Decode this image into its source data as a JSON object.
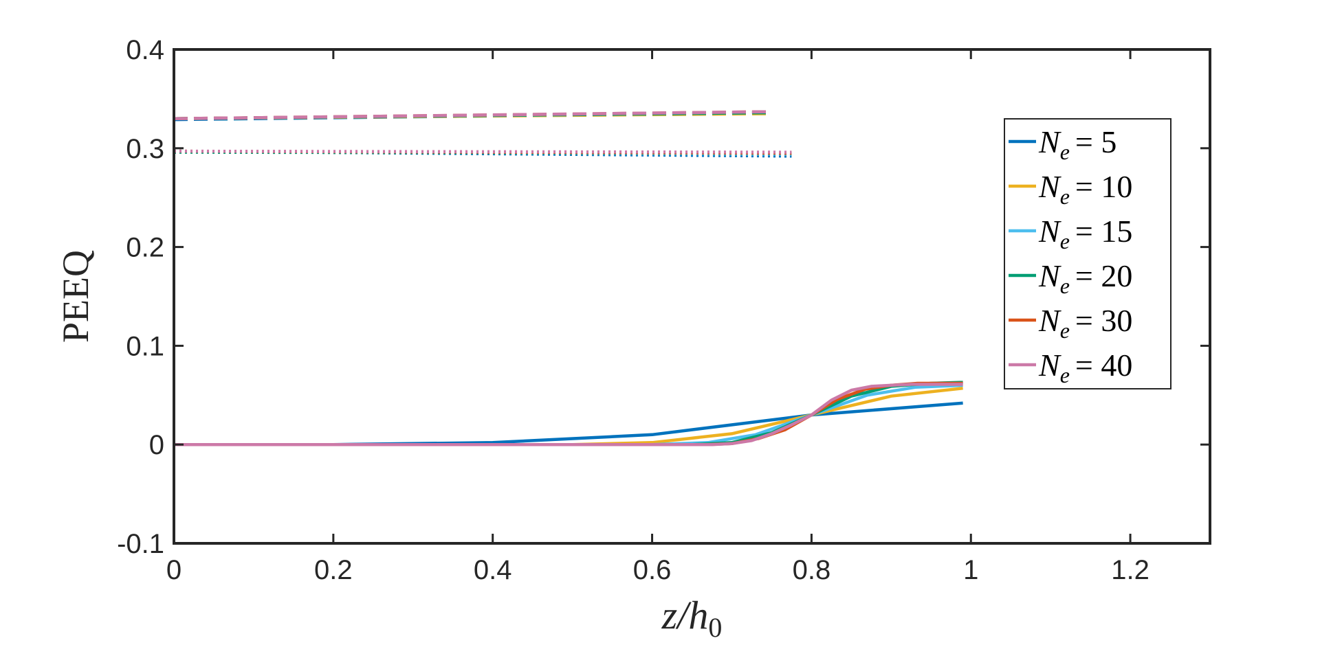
{
  "chart_data": {
    "type": "line",
    "xlabel": "z/h",
    "xlabel_sub": "0",
    "ylabel": "PEEQ",
    "xlim": [
      0,
      1.3
    ],
    "ylim": [
      -0.1,
      0.4
    ],
    "x_ticks": [
      "0",
      "0.2",
      "0.4",
      "0.6",
      "0.8",
      "1",
      "1.2"
    ],
    "y_ticks": [
      "-0.1",
      "0",
      "0.1",
      "0.2",
      "0.3",
      "0.4"
    ],
    "grid": false,
    "legend_position": "right",
    "series": [
      {
        "name": "N_e = 5",
        "legend_symbol": "N",
        "legend_sub": "e",
        "legend_value": "= 5",
        "color": "#0072bd",
        "solid": {
          "x": [
            0,
            0.2,
            0.4,
            0.6,
            0.8,
            0.99
          ],
          "y": [
            0,
            0,
            0.002,
            0.01,
            0.03,
            0.042
          ]
        },
        "dashed": {
          "x": [
            0,
            0.75
          ],
          "y": [
            0.329,
            0.336
          ]
        },
        "dotted": {
          "x": [
            0,
            0.775
          ],
          "y": [
            0.297,
            0.292
          ]
        }
      },
      {
        "name": "N_e = 10",
        "legend_symbol": "N",
        "legend_sub": "e",
        "legend_value": "= 10",
        "color": "#edb120",
        "solid": {
          "x": [
            0,
            0.5,
            0.6,
            0.7,
            0.8,
            0.9,
            0.99
          ],
          "y": [
            0,
            0,
            0.002,
            0.011,
            0.03,
            0.049,
            0.057
          ]
        },
        "dashed": {
          "x": [
            0,
            0.75
          ],
          "y": [
            0.33,
            0.335
          ]
        },
        "dotted": {
          "x": [
            0,
            0.775
          ],
          "y": [
            0.297,
            0.294
          ]
        }
      },
      {
        "name": "N_e = 15",
        "legend_symbol": "N",
        "legend_sub": "e",
        "legend_value": "= 15",
        "color": "#4dbeee",
        "solid": {
          "x": [
            0,
            0.6,
            0.67,
            0.73,
            0.8,
            0.87,
            0.93,
            0.99
          ],
          "y": [
            0,
            0,
            0.002,
            0.01,
            0.03,
            0.05,
            0.058,
            0.06
          ]
        },
        "dashed": {
          "x": [
            0,
            0.75
          ],
          "y": [
            0.33,
            0.336
          ]
        },
        "dotted": {
          "x": [
            0,
            0.775
          ],
          "y": [
            0.297,
            0.294
          ]
        }
      },
      {
        "name": "N_e = 20",
        "legend_symbol": "N",
        "legend_sub": "e",
        "legend_value": "= 20",
        "color": "#009e73",
        "solid": {
          "x": [
            0,
            0.65,
            0.7,
            0.75,
            0.8,
            0.85,
            0.9,
            0.95,
            0.99
          ],
          "y": [
            0,
            0,
            0.002,
            0.012,
            0.03,
            0.049,
            0.059,
            0.062,
            0.063
          ]
        },
        "dashed": {
          "x": [
            0,
            0.75
          ],
          "y": [
            0.33,
            0.336
          ]
        },
        "dotted": {
          "x": [
            0,
            0.775
          ],
          "y": [
            0.296,
            0.295
          ]
        }
      },
      {
        "name": "N_e = 30",
        "legend_symbol": "N",
        "legend_sub": "e",
        "legend_value": "= 30",
        "color": "#d95319",
        "solid": {
          "x": [
            0,
            0.67,
            0.7,
            0.733,
            0.767,
            0.8,
            0.833,
            0.867,
            0.9,
            0.933,
            0.967,
            0.99
          ],
          "y": [
            0,
            0,
            0.001,
            0.006,
            0.015,
            0.03,
            0.046,
            0.056,
            0.06,
            0.062,
            0.062,
            0.062
          ]
        },
        "dashed": {
          "x": [
            0,
            0.75
          ],
          "y": [
            0.33,
            0.337
          ]
        },
        "dotted": {
          "x": [
            0,
            0.775
          ],
          "y": [
            0.297,
            0.295
          ]
        }
      },
      {
        "name": "N_e = 40",
        "legend_symbol": "N",
        "legend_sub": "e",
        "legend_value": "= 40",
        "color": "#cc79a7",
        "solid": {
          "x": [
            0,
            0.675,
            0.7,
            0.725,
            0.75,
            0.775,
            0.8,
            0.825,
            0.85,
            0.875,
            0.9,
            0.925,
            0.95,
            0.99
          ],
          "y": [
            0,
            0,
            0.001,
            0.004,
            0.011,
            0.02,
            0.03,
            0.045,
            0.055,
            0.059,
            0.06,
            0.061,
            0.061,
            0.061
          ]
        },
        "dashed": {
          "x": [
            0,
            0.75
          ],
          "y": [
            0.33,
            0.337
          ]
        },
        "dotted": {
          "x": [
            0,
            0.775
          ],
          "y": [
            0.297,
            0.296
          ]
        }
      }
    ]
  }
}
